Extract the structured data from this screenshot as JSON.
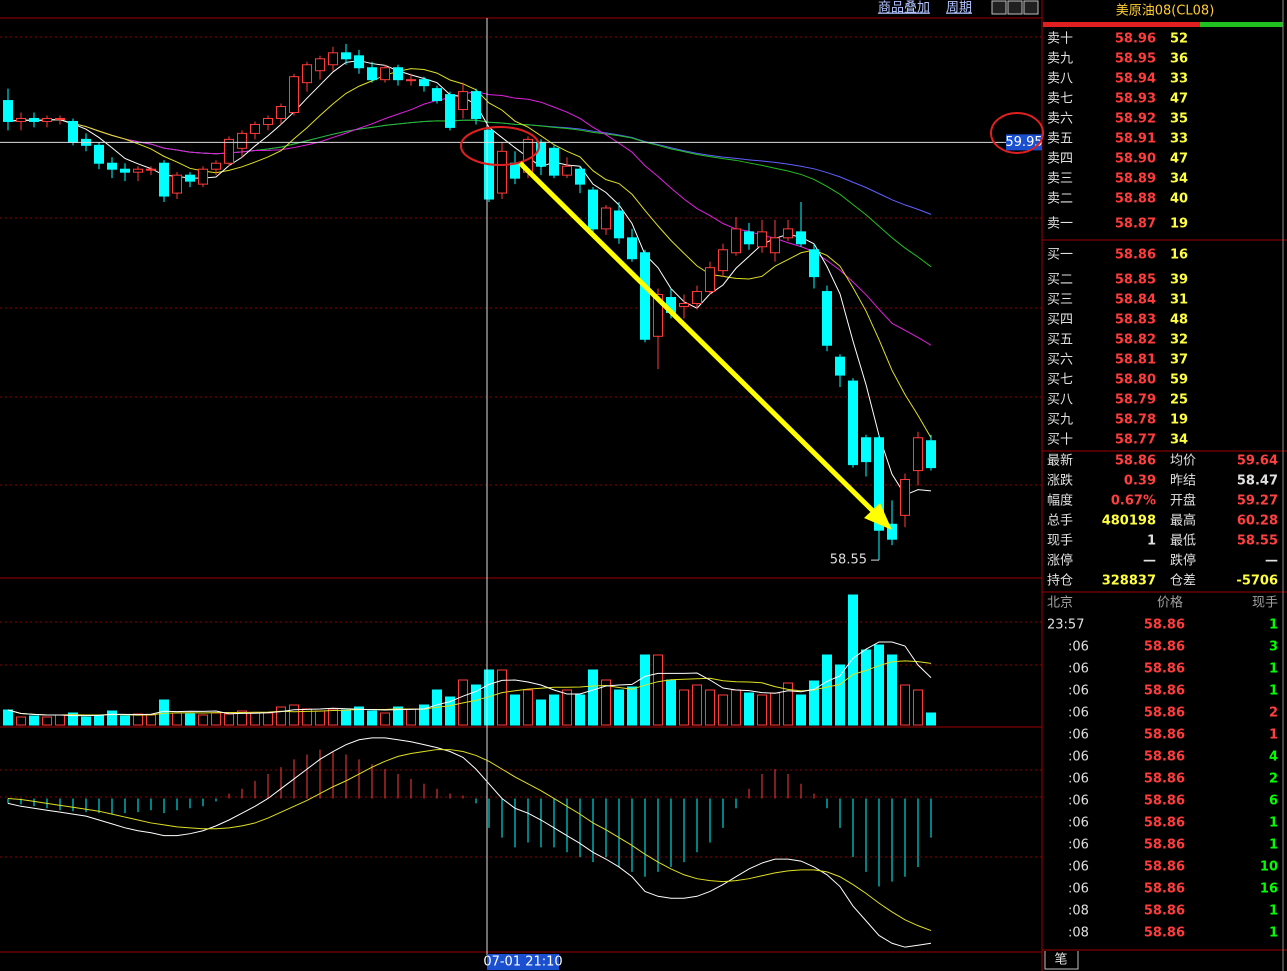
{
  "toolbar": {
    "overlay": "商品叠加",
    "period": "周期"
  },
  "chart": {
    "price_ylim": [
      58.49,
      60.36
    ],
    "candles": [
      [
        60.09,
        60.02,
        60.13,
        59.99
      ],
      [
        60.02,
        60.03,
        60.05,
        59.99
      ],
      [
        60.03,
        60.02,
        60.05,
        60.0
      ],
      [
        60.02,
        60.03,
        60.04,
        60.0
      ],
      [
        60.03,
        60.03,
        60.04,
        60.01
      ],
      [
        60.02,
        59.95,
        60.03,
        59.94
      ],
      [
        59.96,
        59.94,
        59.98,
        59.92
      ],
      [
        59.94,
        59.88,
        59.95,
        59.86
      ],
      [
        59.88,
        59.86,
        59.9,
        59.83
      ],
      [
        59.86,
        59.85,
        59.88,
        59.82
      ],
      [
        59.85,
        59.86,
        59.87,
        59.82
      ],
      [
        59.86,
        59.86,
        59.87,
        59.84
      ],
      [
        59.88,
        59.77,
        59.89,
        59.75
      ],
      [
        59.78,
        59.84,
        59.85,
        59.76
      ],
      [
        59.84,
        59.82,
        59.85,
        59.8
      ],
      [
        59.81,
        59.86,
        59.87,
        59.8
      ],
      [
        59.86,
        59.88,
        59.89,
        59.84
      ],
      [
        59.88,
        59.96,
        59.97,
        59.87
      ],
      [
        59.93,
        59.98,
        59.99,
        59.9
      ],
      [
        59.98,
        60.01,
        60.02,
        59.96
      ],
      [
        60.01,
        60.03,
        60.04,
        59.99
      ],
      [
        60.03,
        60.07,
        60.08,
        60.01
      ],
      [
        60.05,
        60.17,
        60.18,
        60.04
      ],
      [
        60.15,
        60.21,
        60.22,
        60.12
      ],
      [
        60.19,
        60.23,
        60.24,
        60.16
      ],
      [
        60.21,
        60.25,
        60.27,
        60.19
      ],
      [
        60.25,
        60.23,
        60.28,
        60.21
      ],
      [
        60.24,
        60.2,
        60.26,
        60.18
      ],
      [
        60.2,
        60.16,
        60.22,
        60.15
      ],
      [
        60.16,
        60.2,
        60.21,
        60.15
      ],
      [
        60.2,
        60.16,
        60.21,
        60.14
      ],
      [
        60.16,
        60.16,
        60.18,
        60.14
      ],
      [
        60.16,
        60.14,
        60.17,
        60.12
      ],
      [
        60.13,
        60.09,
        60.14,
        60.08
      ],
      [
        60.11,
        60.0,
        60.12,
        59.99
      ],
      [
        60.06,
        60.12,
        60.15,
        60.03
      ],
      [
        60.12,
        60.03,
        60.13,
        60.01
      ],
      [
        59.99,
        59.76,
        60.0,
        59.75
      ],
      [
        59.78,
        59.92,
        59.95,
        59.76
      ],
      [
        59.88,
        59.83,
        59.92,
        59.81
      ],
      [
        59.85,
        59.96,
        59.97,
        59.83
      ],
      [
        59.95,
        59.87,
        59.96,
        59.84
      ],
      [
        59.93,
        59.84,
        59.94,
        59.83
      ],
      [
        59.84,
        59.87,
        59.9,
        59.83
      ],
      [
        59.86,
        59.81,
        59.87,
        59.78
      ],
      [
        59.79,
        59.66,
        59.8,
        59.64
      ],
      [
        59.66,
        59.73,
        59.74,
        59.64
      ],
      [
        59.72,
        59.63,
        59.75,
        59.61
      ],
      [
        59.63,
        59.56,
        59.66,
        59.55
      ],
      [
        59.58,
        59.29,
        59.59,
        59.28
      ],
      [
        59.3,
        59.44,
        59.46,
        59.19
      ],
      [
        59.43,
        59.38,
        59.46,
        59.36
      ],
      [
        59.4,
        59.41,
        59.44,
        59.36
      ],
      [
        59.41,
        59.45,
        59.47,
        59.39
      ],
      [
        59.45,
        59.53,
        59.55,
        59.44
      ],
      [
        59.52,
        59.59,
        59.61,
        59.5
      ],
      [
        59.58,
        59.66,
        59.7,
        59.57
      ],
      [
        59.65,
        59.61,
        59.68,
        59.59
      ],
      [
        59.6,
        59.65,
        59.69,
        59.58
      ],
      [
        59.58,
        59.63,
        59.69,
        59.55
      ],
      [
        59.63,
        59.66,
        59.69,
        59.62
      ],
      [
        59.65,
        59.61,
        59.75,
        59.6
      ],
      [
        59.59,
        59.5,
        59.61,
        59.46
      ],
      [
        59.45,
        59.27,
        59.47,
        59.25
      ],
      [
        59.23,
        59.17,
        59.24,
        59.13
      ],
      [
        59.15,
        58.87,
        59.16,
        58.86
      ],
      [
        58.96,
        58.88,
        58.97,
        58.83
      ],
      [
        58.96,
        58.65,
        58.97,
        58.55
      ],
      [
        58.67,
        58.62,
        58.75,
        58.6
      ],
      [
        58.7,
        58.82,
        58.84,
        58.66
      ],
      [
        58.85,
        58.96,
        58.98,
        58.8
      ],
      [
        58.95,
        58.86,
        58.97,
        58.85
      ]
    ],
    "low_label": 58.55,
    "crosshair_price": 59.95,
    "crosshair_time": "07-01 21:10",
    "volume_ylim": [
      0,
      140
    ],
    "volume": [
      15,
      8,
      9,
      8,
      10,
      12,
      8,
      10,
      14,
      9,
      11,
      10,
      25,
      12,
      11,
      10,
      12,
      11,
      14,
      12,
      12,
      18,
      20,
      16,
      14,
      16,
      15,
      18,
      14,
      12,
      18,
      16,
      20,
      35,
      28,
      45,
      40,
      55,
      55,
      30,
      35,
      25,
      30,
      35,
      30,
      55,
      45,
      35,
      38,
      70,
      70,
      45,
      35,
      40,
      35,
      30,
      35,
      32,
      30,
      32,
      42,
      30,
      44,
      70,
      60,
      130,
      75,
      80,
      70,
      40,
      35,
      12
    ],
    "macd_ylim": [
      -160,
      70
    ],
    "macd_hist": [
      -5,
      -6,
      -8,
      -10,
      -12,
      -13,
      -14,
      -15,
      -16,
      -15,
      -14,
      -12,
      -15,
      -12,
      -10,
      -8,
      -3,
      5,
      10,
      18,
      25,
      32,
      40,
      45,
      50,
      48,
      45,
      40,
      35,
      30,
      25,
      20,
      15,
      10,
      5,
      3,
      -5,
      -30,
      -40,
      -50,
      -45,
      -50,
      -50,
      -55,
      -60,
      -65,
      -60,
      -70,
      -75,
      -80,
      -75,
      -70,
      -65,
      -55,
      -45,
      -30,
      -10,
      10,
      25,
      30,
      25,
      15,
      5,
      -10,
      -30,
      -60,
      -75,
      -90,
      -85,
      -80,
      -70,
      -40
    ],
    "macd_dif": [
      -5,
      -8,
      -10,
      -12,
      -14,
      -16,
      -18,
      -22,
      -26,
      -30,
      -33,
      -35,
      -38,
      -38,
      -36,
      -33,
      -28,
      -22,
      -15,
      -8,
      0,
      10,
      20,
      30,
      40,
      48,
      55,
      60,
      62,
      62,
      60,
      58,
      55,
      52,
      48,
      42,
      30,
      15,
      0,
      -10,
      -15,
      -22,
      -30,
      -38,
      -46,
      -55,
      -62,
      -70,
      -80,
      -95,
      -100,
      -102,
      -102,
      -100,
      -95,
      -88,
      -80,
      -72,
      -66,
      -62,
      -62,
      -64,
      -70,
      -78,
      -90,
      -110,
      -125,
      -140,
      -148,
      -152,
      -150,
      -148
    ],
    "macd_dea": [
      0,
      -1,
      -3,
      -5,
      -7,
      -9,
      -11,
      -13,
      -16,
      -19,
      -22,
      -25,
      -27,
      -29,
      -30,
      -31,
      -31,
      -30,
      -28,
      -25,
      -20,
      -14,
      -8,
      -2,
      5,
      12,
      18,
      25,
      32,
      38,
      43,
      46,
      48,
      50,
      50,
      48,
      44,
      38,
      30,
      22,
      15,
      8,
      0,
      -8,
      -16,
      -25,
      -32,
      -40,
      -48,
      -57,
      -65,
      -72,
      -78,
      -82,
      -84,
      -85,
      -84,
      -82,
      -79,
      -76,
      -74,
      -73,
      -73,
      -75,
      -80,
      -88,
      -97,
      -107,
      -116,
      -124,
      -130,
      -135
    ]
  },
  "quote": {
    "title": "美原油08(CL08)",
    "asks": [
      {
        "label": "卖十",
        "price": "58.96",
        "volume": "52"
      },
      {
        "label": "卖九",
        "price": "58.95",
        "volume": "36"
      },
      {
        "label": "卖八",
        "price": "58.94",
        "volume": "33"
      },
      {
        "label": "卖七",
        "price": "58.93",
        "volume": "47"
      },
      {
        "label": "卖六",
        "price": "58.92",
        "volume": "35"
      },
      {
        "label": "卖五",
        "price": "58.91",
        "volume": "33"
      },
      {
        "label": "卖四",
        "price": "58.90",
        "volume": "47"
      },
      {
        "label": "卖三",
        "price": "58.89",
        "volume": "34"
      },
      {
        "label": "卖二",
        "price": "58.88",
        "volume": "40"
      },
      {
        "label": "卖一",
        "price": "58.87",
        "volume": "19"
      }
    ],
    "bids": [
      {
        "label": "买一",
        "price": "58.86",
        "volume": "16"
      },
      {
        "label": "买二",
        "price": "58.85",
        "volume": "39"
      },
      {
        "label": "买三",
        "price": "58.84",
        "volume": "31"
      },
      {
        "label": "买四",
        "price": "58.83",
        "volume": "48"
      },
      {
        "label": "买五",
        "price": "58.82",
        "volume": "32"
      },
      {
        "label": "买六",
        "price": "58.81",
        "volume": "37"
      },
      {
        "label": "买七",
        "price": "58.80",
        "volume": "59"
      },
      {
        "label": "买八",
        "price": "58.79",
        "volume": "25"
      },
      {
        "label": "买九",
        "price": "58.78",
        "volume": "19"
      },
      {
        "label": "买十",
        "price": "58.77",
        "volume": "34"
      }
    ],
    "stats": [
      [
        {
          "label": "最新",
          "value": "58.86",
          "color": "#ff4040"
        },
        {
          "label": "均价",
          "value": "59.64",
          "color": "#ff4040"
        }
      ],
      [
        {
          "label": "涨跌",
          "value": "0.39",
          "color": "#ff4040"
        },
        {
          "label": "昨结",
          "value": "58.47",
          "color": "#e0e0e0"
        }
      ],
      [
        {
          "label": "幅度",
          "value": "0.67%",
          "color": "#ff4040"
        },
        {
          "label": "开盘",
          "value": "59.27",
          "color": "#ff4040"
        }
      ],
      [
        {
          "label": "总手",
          "value": "480198",
          "color": "#ffff40"
        },
        {
          "label": "最高",
          "value": "60.28",
          "color": "#ff4040"
        }
      ],
      [
        {
          "label": "现手",
          "value": "1",
          "color": "#e0e0e0"
        },
        {
          "label": "最低",
          "value": "58.55",
          "color": "#ff4040"
        }
      ],
      [
        {
          "label": "涨停",
          "value": "—",
          "color": "#e0e0e0"
        },
        {
          "label": "跌停",
          "value": "—",
          "color": "#e0e0e0"
        }
      ],
      [
        {
          "label": "持仓",
          "value": "328837",
          "color": "#ffff40"
        },
        {
          "label": "仓差",
          "value": "-5706",
          "color": "#ffff40"
        }
      ]
    ],
    "ticks_header": [
      "北京",
      "价格",
      "现手"
    ],
    "ticks": [
      {
        "time": "23:57",
        "price": "58.86",
        "volume": "1",
        "color": "#00ff00"
      },
      {
        "time": ":06",
        "price": "58.86",
        "volume": "3",
        "color": "#00ff00"
      },
      {
        "time": ":06",
        "price": "58.86",
        "volume": "1",
        "color": "#00ff00"
      },
      {
        "time": ":06",
        "price": "58.86",
        "volume": "1",
        "color": "#00ff00"
      },
      {
        "time": ":06",
        "price": "58.86",
        "volume": "2",
        "color": "#ff4040"
      },
      {
        "time": ":06",
        "price": "58.86",
        "volume": "1",
        "color": "#ff4040"
      },
      {
        "time": ":06",
        "price": "58.86",
        "volume": "4",
        "color": "#00ff00"
      },
      {
        "time": ":06",
        "price": "58.86",
        "volume": "2",
        "color": "#00ff00"
      },
      {
        "time": ":06",
        "price": "58.86",
        "volume": "6",
        "color": "#00ff00"
      },
      {
        "time": ":06",
        "price": "58.86",
        "volume": "1",
        "color": "#00ff00"
      },
      {
        "time": ":06",
        "price": "58.86",
        "volume": "1",
        "color": "#00ff00"
      },
      {
        "time": ":06",
        "price": "58.86",
        "volume": "10",
        "color": "#00ff00"
      },
      {
        "time": ":06",
        "price": "58.86",
        "volume": "16",
        "color": "#00ff00"
      },
      {
        "time": ":08",
        "price": "58.86",
        "volume": "1",
        "color": "#00ff00"
      },
      {
        "time": ":08",
        "price": "58.86",
        "volume": "1",
        "color": "#00ff00"
      }
    ],
    "tab": "笔"
  }
}
